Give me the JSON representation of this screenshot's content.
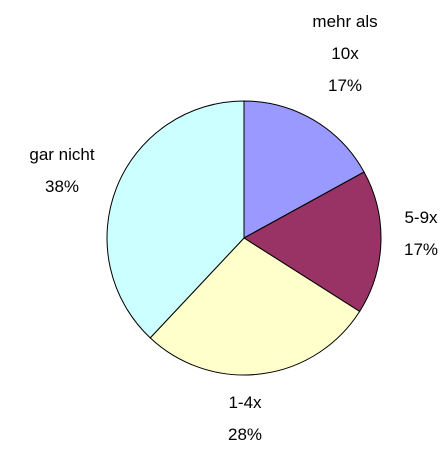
{
  "chart_data": {
    "type": "pie",
    "categories": [
      "mehr als 10x",
      "5-9x",
      "1-4x",
      "gar nicht"
    ],
    "values": [
      17,
      17,
      28,
      38
    ],
    "value_labels": [
      "17%",
      "17%",
      "28%",
      "38%"
    ],
    "colors": [
      "#9999ff",
      "#993366",
      "#ffffcc",
      "#ccffff"
    ]
  }
}
